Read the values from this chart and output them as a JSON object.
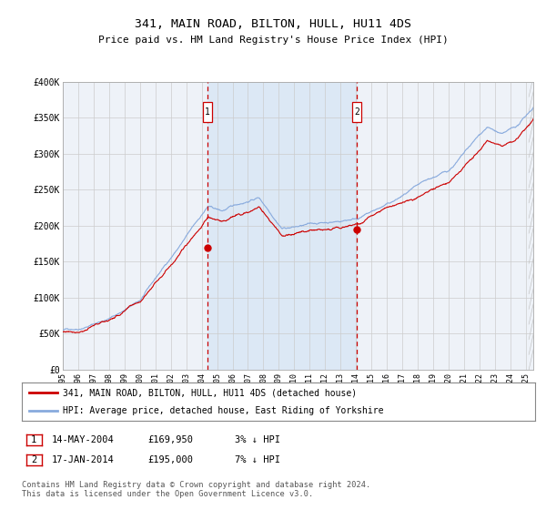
{
  "title": "341, MAIN ROAD, BILTON, HULL, HU11 4DS",
  "subtitle": "Price paid vs. HM Land Registry's House Price Index (HPI)",
  "ylim": [
    0,
    400000
  ],
  "yticks": [
    0,
    50000,
    100000,
    150000,
    200000,
    250000,
    300000,
    350000,
    400000
  ],
  "ytick_labels": [
    "£0",
    "£50K",
    "£100K",
    "£150K",
    "£200K",
    "£250K",
    "£300K",
    "£350K",
    "£400K"
  ],
  "xlim_start": 1995.0,
  "xlim_end": 2025.5,
  "sale1_date": 2004.37,
  "sale1_price": 169950,
  "sale1_label": "1",
  "sale1_table": "14-MAY-2004",
  "sale1_price_str": "£169,950",
  "sale1_hpi_str": "3% ↓ HPI",
  "sale2_date": 2014.05,
  "sale2_price": 195000,
  "sale2_label": "2",
  "sale2_table": "17-JAN-2014",
  "sale2_price_str": "£195,000",
  "sale2_hpi_str": "7% ↓ HPI",
  "hpi_color": "#88aadd",
  "property_color": "#cc0000",
  "shade_color": "#dce8f5",
  "grid_color": "#cccccc",
  "bg_color": "#ffffff",
  "plot_bg_color": "#eef2f8",
  "legend_label1": "341, MAIN ROAD, BILTON, HULL, HU11 4DS (detached house)",
  "legend_label2": "HPI: Average price, detached house, East Riding of Yorkshire",
  "footnote": "Contains HM Land Registry data © Crown copyright and database right 2024.\nThis data is licensed under the Open Government Licence v3.0."
}
